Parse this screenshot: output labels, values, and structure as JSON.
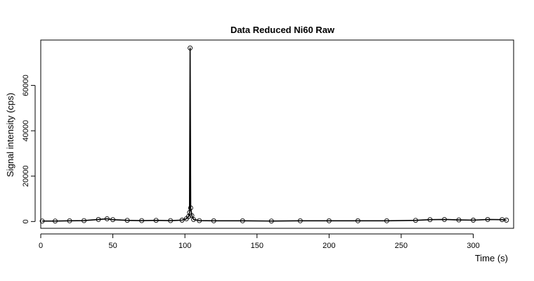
{
  "chart_data": {
    "type": "line",
    "title": "Data Reduced Ni60 Raw",
    "xlabel": "Time (s)",
    "ylabel": "Signal intensity (cps)",
    "xlim": [
      0,
      328
    ],
    "ylim": [
      -3000,
      80000
    ],
    "x_ticks": [
      0,
      50,
      100,
      150,
      200,
      250,
      300
    ],
    "x_tick_labels": [
      "0",
      "50",
      "100",
      "150",
      "200",
      "250",
      "300"
    ],
    "y_ticks": [
      0,
      20000,
      40000,
      60000
    ],
    "y_tick_labels": [
      "0",
      "20000",
      "40000",
      "60000"
    ],
    "grid": false,
    "legend": "none",
    "series": [
      {
        "marker": "open-circle",
        "x": [
          1,
          10,
          20,
          30,
          40,
          46,
          50,
          60,
          70,
          80,
          90,
          98,
          101,
          102.5,
          103.2,
          103.6,
          104.0,
          104.8,
          106,
          110,
          120,
          140,
          160,
          180,
          200,
          220,
          240,
          260,
          270,
          280,
          290,
          300,
          310,
          320,
          323
        ],
        "y": [
          200,
          200,
          300,
          400,
          900,
          1200,
          800,
          500,
          400,
          500,
          400,
          600,
          1200,
          2200,
          4000,
          76500,
          6000,
          2600,
          900,
          400,
          300,
          300,
          200,
          300,
          300,
          300,
          300,
          500,
          800,
          900,
          700,
          600,
          900,
          800,
          600
        ]
      }
    ]
  }
}
